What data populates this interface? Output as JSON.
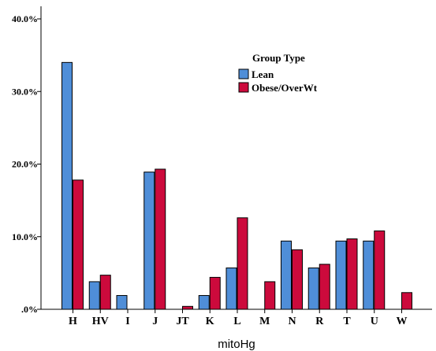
{
  "chart_data": {
    "type": "bar",
    "title": "",
    "xlabel": "mitoHg",
    "ylabel": "",
    "categories": [
      "H",
      "HV",
      "I",
      "J",
      "JT",
      "K",
      "L",
      "M",
      "N",
      "R",
      "T",
      "U",
      "W"
    ],
    "series": [
      {
        "name": "Lean",
        "color": "#4f8ed8",
        "values": [
          34.0,
          3.8,
          1.9,
          18.9,
          0.0,
          1.9,
          5.7,
          0.0,
          9.4,
          5.7,
          9.4,
          9.4,
          0.0
        ]
      },
      {
        "name": "Obese/OverWt",
        "color": "#cc0a3c",
        "values": [
          17.8,
          4.7,
          0.0,
          19.3,
          0.4,
          4.4,
          12.6,
          3.8,
          8.2,
          6.2,
          9.7,
          10.8,
          2.3
        ]
      }
    ],
    "ylim": [
      0,
      40
    ],
    "yticks": [
      {
        "value": 0,
        "label": ".0%"
      },
      {
        "value": 10,
        "label": "10.0%"
      },
      {
        "value": 20,
        "label": "20.0%"
      },
      {
        "value": 30,
        "label": "30.0%"
      },
      {
        "value": 40,
        "label": "40.0%"
      }
    ],
    "legend": {
      "title": "Group Type",
      "placement": "top-right"
    },
    "grid": false
  }
}
